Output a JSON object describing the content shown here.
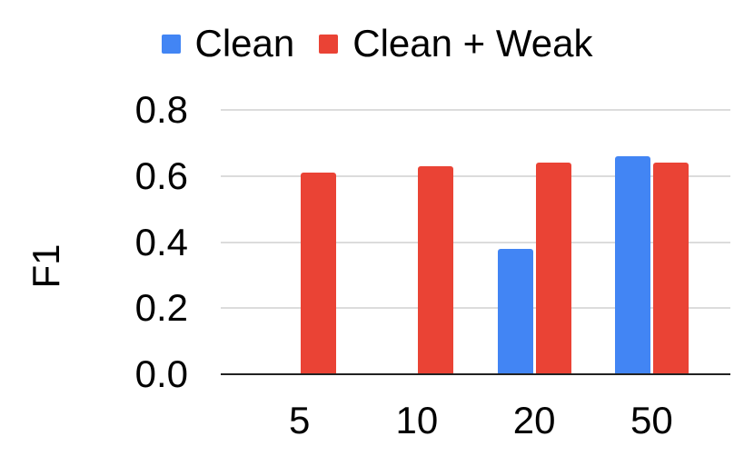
{
  "chart_data": {
    "type": "bar",
    "title": "",
    "xlabel": "",
    "ylabel": "F1",
    "categories": [
      "5",
      "10",
      "20",
      "50"
    ],
    "series": [
      {
        "name": "Clean",
        "color": "#4285F4",
        "values": [
          0,
          0,
          0.38,
          0.66
        ]
      },
      {
        "name": "Clean + Weak",
        "color": "#EA4335",
        "values": [
          0.61,
          0.63,
          0.64,
          0.64
        ]
      }
    ],
    "ylim": [
      0,
      0.8
    ],
    "yticks": [
      0.0,
      0.2,
      0.4,
      0.6,
      0.8
    ],
    "ytick_labels": [
      "0.0",
      "0.2",
      "0.4",
      "0.6",
      "0.8"
    ],
    "grid": true,
    "legend_position": "top-center"
  },
  "colors": {
    "background": "#ffffff",
    "text": "#000000",
    "gridline": "#dcdcdc",
    "axis_line": "#222222"
  }
}
